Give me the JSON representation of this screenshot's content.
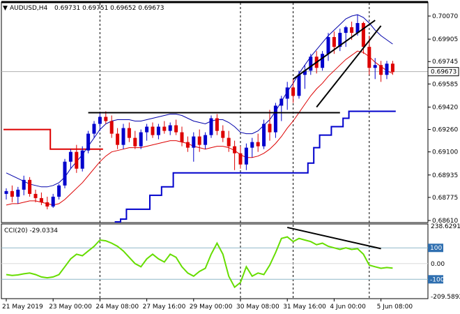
{
  "chart_data": [
    {
      "type": "candlestick",
      "symbol_label": "AUDUSD,H4",
      "ohlc_label": "0.69731 0.69751 0.69652 0.69673",
      "current_price": 0.69673,
      "current_price_label": "0.69673",
      "ylim": [
        0.6861,
        0.70085
      ],
      "y_ticks": [
        0.7007,
        0.69905,
        0.69745,
        0.69585,
        0.6942,
        0.6926,
        0.691,
        0.68935,
        0.68775,
        0.6861
      ],
      "y_tick_labels": [
        "0.70070",
        "0.69905",
        "0.69745",
        "0.69585",
        "0.69420",
        "0.69260",
        "0.69100",
        "0.68935",
        "0.68775",
        "0.68610"
      ],
      "x_tick_labels": [
        "21 May 2019",
        "23 May 00:00",
        "24 May 08:00",
        "27 May 16:00",
        "29 May 00:00",
        "30 May 08:00",
        "31 May 16:00",
        "4 Jun 00:00",
        "5 Jun 08:00"
      ],
      "x_tick_index": [
        0,
        8,
        16,
        24,
        32,
        40,
        48,
        56,
        64
      ],
      "vertical_markers_index": [
        16,
        40,
        49,
        62
      ],
      "candles": [
        [
          0.688,
          0.6884,
          0.6876,
          0.6882
        ],
        [
          0.6882,
          0.6886,
          0.6874,
          0.6878
        ],
        [
          0.6878,
          0.6885,
          0.6873,
          0.6883
        ],
        [
          0.6883,
          0.6893,
          0.6879,
          0.689
        ],
        [
          0.689,
          0.6892,
          0.6878,
          0.688
        ],
        [
          0.688,
          0.6883,
          0.6874,
          0.6877
        ],
        [
          0.6877,
          0.6881,
          0.6872,
          0.6874
        ],
        [
          0.6874,
          0.6878,
          0.6869,
          0.6871
        ],
        [
          0.6871,
          0.688,
          0.687,
          0.6878
        ],
        [
          0.6878,
          0.6887,
          0.6876,
          0.6886
        ],
        [
          0.6886,
          0.6905,
          0.6884,
          0.6903
        ],
        [
          0.6903,
          0.6912,
          0.6898,
          0.691
        ],
        [
          0.691,
          0.6915,
          0.6895,
          0.6898
        ],
        [
          0.6898,
          0.6914,
          0.6896,
          0.6911
        ],
        [
          0.6911,
          0.6925,
          0.6909,
          0.6923
        ],
        [
          0.6923,
          0.6932,
          0.692,
          0.693
        ],
        [
          0.693,
          0.6938,
          0.6925,
          0.6935
        ],
        [
          0.6935,
          0.6939,
          0.693,
          0.6932
        ],
        [
          0.6932,
          0.6936,
          0.692,
          0.6923
        ],
        [
          0.6923,
          0.6927,
          0.6912,
          0.6915
        ],
        [
          0.6915,
          0.693,
          0.6912,
          0.6927
        ],
        [
          0.6927,
          0.6931,
          0.6917,
          0.692
        ],
        [
          0.692,
          0.6925,
          0.6912,
          0.6914
        ],
        [
          0.6914,
          0.6926,
          0.6912,
          0.6924
        ],
        [
          0.6924,
          0.693,
          0.6918,
          0.6928
        ],
        [
          0.6928,
          0.6931,
          0.692,
          0.6922
        ],
        [
          0.6922,
          0.693,
          0.6919,
          0.6928
        ],
        [
          0.6928,
          0.6932,
          0.6923,
          0.6925
        ],
        [
          0.6925,
          0.6931,
          0.6922,
          0.6929
        ],
        [
          0.6929,
          0.6933,
          0.6922,
          0.6924
        ],
        [
          0.6924,
          0.6928,
          0.6914,
          0.6917
        ],
        [
          0.6917,
          0.6921,
          0.691,
          0.6913
        ],
        [
          0.6913,
          0.6924,
          0.6903,
          0.6921
        ],
        [
          0.6921,
          0.6926,
          0.691,
          0.6915
        ],
        [
          0.6915,
          0.6924,
          0.6912,
          0.6922
        ],
        [
          0.6922,
          0.6936,
          0.692,
          0.6934
        ],
        [
          0.6934,
          0.6937,
          0.6922,
          0.6925
        ],
        [
          0.6925,
          0.6929,
          0.6917,
          0.692
        ],
        [
          0.692,
          0.6925,
          0.691,
          0.6914
        ],
        [
          0.6914,
          0.6918,
          0.6897,
          0.6909
        ],
        [
          0.6909,
          0.6914,
          0.6898,
          0.6901
        ],
        [
          0.6901,
          0.6916,
          0.6897,
          0.6913
        ],
        [
          0.6913,
          0.692,
          0.6906,
          0.6917
        ],
        [
          0.6917,
          0.6923,
          0.691,
          0.6914
        ],
        [
          0.6914,
          0.6933,
          0.6912,
          0.693
        ],
        [
          0.693,
          0.694,
          0.6918,
          0.6924
        ],
        [
          0.6924,
          0.6945,
          0.692,
          0.6943
        ],
        [
          0.6943,
          0.695,
          0.6932,
          0.6948
        ],
        [
          0.6948,
          0.696,
          0.694,
          0.6956
        ],
        [
          0.6956,
          0.6962,
          0.6945,
          0.695
        ],
        [
          0.695,
          0.6968,
          0.6948,
          0.6965
        ],
        [
          0.6965,
          0.6972,
          0.6955,
          0.6968
        ],
        [
          0.6968,
          0.698,
          0.6965,
          0.6978
        ],
        [
          0.6978,
          0.6982,
          0.6966,
          0.697
        ],
        [
          0.697,
          0.6982,
          0.6968,
          0.698
        ],
        [
          0.698,
          0.6995,
          0.6975,
          0.6992
        ],
        [
          0.6992,
          0.6996,
          0.698,
          0.6985
        ],
        [
          0.6985,
          0.6998,
          0.6982,
          0.6995
        ],
        [
          0.6995,
          0.7,
          0.6985,
          0.6999
        ],
        [
          0.6999,
          0.7003,
          0.699,
          0.6995
        ],
        [
          0.6995,
          0.7008,
          0.6993,
          0.7002
        ],
        [
          0.7002,
          0.7003,
          0.698,
          0.6985
        ],
        [
          0.6985,
          0.6993,
          0.6965,
          0.697
        ],
        [
          0.697,
          0.6977,
          0.6962,
          0.6972
        ],
        [
          0.6972,
          0.6975,
          0.696,
          0.6965
        ],
        [
          0.6965,
          0.6975,
          0.6962,
          0.6973
        ],
        [
          0.6973,
          0.6975,
          0.6965,
          0.6967
        ]
      ],
      "ma_fast": [
        0.6878,
        0.6879,
        0.6879,
        0.688,
        0.6881,
        0.688,
        0.6879,
        0.6877,
        0.6876,
        0.6878,
        0.6883,
        0.6889,
        0.6894,
        0.6898,
        0.6904,
        0.691,
        0.6916,
        0.692,
        0.6922,
        0.6922,
        0.6922,
        0.6922,
        0.6921,
        0.6921,
        0.6922,
        0.6923,
        0.6924,
        0.6925,
        0.6926,
        0.6926,
        0.6924,
        0.6922,
        0.692,
        0.6919,
        0.6918,
        0.6921,
        0.6922,
        0.6922,
        0.692,
        0.6917,
        0.6913,
        0.6912,
        0.6913,
        0.6914,
        0.6918,
        0.6921,
        0.6926,
        0.6932,
        0.6939,
        0.6944,
        0.6951,
        0.6957,
        0.6963,
        0.6967,
        0.6971,
        0.6977,
        0.698,
        0.6984,
        0.6988,
        0.699,
        0.6993,
        0.6991,
        0.6986,
        0.6982,
        0.6978,
        0.6976,
        0.6974
      ],
      "ma_slow": [
        0.6872,
        0.6873,
        0.6873,
        0.6874,
        0.6875,
        0.6875,
        0.6874,
        0.6873,
        0.6872,
        0.6873,
        0.6876,
        0.688,
        0.6884,
        0.6888,
        0.6893,
        0.6898,
        0.6903,
        0.6907,
        0.691,
        0.6911,
        0.6912,
        0.6913,
        0.6913,
        0.6913,
        0.6914,
        0.6915,
        0.6916,
        0.6917,
        0.6918,
        0.6918,
        0.6917,
        0.6916,
        0.6914,
        0.6913,
        0.6912,
        0.6913,
        0.6914,
        0.6914,
        0.6913,
        0.6911,
        0.6908,
        0.6906,
        0.6906,
        0.6907,
        0.6909,
        0.6912,
        0.6916,
        0.6921,
        0.6927,
        0.6932,
        0.6938,
        0.6944,
        0.695,
        0.6955,
        0.6959,
        0.6964,
        0.6968,
        0.6972,
        0.6976,
        0.6979,
        0.6982,
        0.6981,
        0.6978,
        0.6974,
        0.6971,
        0.6968,
        0.6966
      ],
      "envelope_upper": [
        0.6895,
        0.6893,
        0.6891,
        0.6889,
        0.6887,
        0.6886,
        0.6885,
        0.6885,
        0.6886,
        0.6888,
        0.6892,
        0.6898,
        0.6903,
        0.6908,
        0.6914,
        0.692,
        0.6926,
        0.693,
        0.6932,
        0.6933,
        0.6933,
        0.6933,
        0.6932,
        0.6932,
        0.6933,
        0.6934,
        0.6935,
        0.6936,
        0.6937,
        0.6937,
        0.6936,
        0.6934,
        0.6932,
        0.6931,
        0.693,
        0.6932,
        0.6933,
        0.6933,
        0.6931,
        0.6928,
        0.6924,
        0.6923,
        0.6923,
        0.6925,
        0.6929,
        0.6933,
        0.6939,
        0.6946,
        0.6953,
        0.6959,
        0.6966,
        0.6972,
        0.6978,
        0.6983,
        0.6988,
        0.6993,
        0.6997,
        0.7001,
        0.7005,
        0.7007,
        0.7008,
        0.7006,
        0.7002,
        0.6997,
        0.6993,
        0.699,
        0.6987
      ],
      "step_upper": [
        0.6926,
        0.6926,
        0.6926,
        0.6926,
        0.6926,
        0.6926,
        0.6926,
        0.6926,
        0.6912,
        0.6912,
        0.6912,
        0.6912,
        0.6912,
        0.6912,
        0.6912,
        0.6912,
        0.6912
      ],
      "step_lower": [
        0.686,
        0.6862,
        0.6869,
        0.6869,
        0.6869,
        0.6869,
        0.6879,
        0.6879,
        0.6885,
        0.6885,
        0.6895,
        0.6895,
        0.6895,
        0.6895,
        0.6895,
        0.6895,
        0.6895,
        0.6895,
        0.6895,
        0.6895,
        0.6895,
        0.6895,
        0.6895,
        0.6895,
        0.6895,
        0.6895,
        0.6895,
        0.6895,
        0.6895,
        0.6895,
        0.6895,
        0.6895,
        0.6895,
        0.6902,
        0.6913,
        0.6922,
        0.6922,
        0.6928,
        0.6928,
        0.6934,
        0.6939,
        0.6939,
        0.6939,
        0.6939,
        0.6939,
        0.6939,
        0.6939,
        0.6939
      ],
      "step_lower_start_index": 19,
      "trendlines": [
        {
          "color": "#000000",
          "from": [
            14,
            0.6938
          ],
          "to": [
            57,
            0.6938
          ]
        },
        {
          "color": "#000000",
          "from": [
            49,
            0.6962
          ],
          "to": [
            63,
            0.7004
          ]
        },
        {
          "color": "#000000",
          "from": [
            53,
            0.6942
          ],
          "to": [
            64,
            0.7
          ]
        }
      ]
    },
    {
      "type": "line",
      "indicator_label": "CCI(20) -29.0334",
      "ylim": [
        -209.5892,
        238.6291
      ],
      "y_tick_labels": [
        "238.6291",
        "100",
        "0.00",
        "-100",
        "-209.5892"
      ],
      "levels": [
        100,
        -100
      ],
      "values": [
        -70,
        -75,
        -72,
        -65,
        -60,
        -70,
        -85,
        -90,
        -85,
        -70,
        -20,
        30,
        60,
        50,
        80,
        110,
        150,
        145,
        130,
        110,
        80,
        40,
        0,
        -20,
        30,
        60,
        30,
        10,
        60,
        40,
        -20,
        -60,
        -80,
        -50,
        -30,
        60,
        130,
        60,
        -80,
        -150,
        -120,
        -20,
        -80,
        -60,
        -70,
        -10,
        70,
        160,
        170,
        140,
        160,
        150,
        140,
        120,
        130,
        110,
        100,
        90,
        100,
        90,
        95,
        60,
        -10,
        -20,
        -30,
        -25,
        -29
      ],
      "trendline": {
        "color": "#000000",
        "from": [
          48,
          230
        ],
        "to": [
          64,
          95
        ]
      }
    }
  ],
  "colors": {
    "candle_up": "#0000cc",
    "candle_down": "#dd0000",
    "ma_fast": "#000080",
    "ma_slow": "#dd0000",
    "envelope": "#0000aa",
    "step_upper": "#dd0000",
    "step_lower": "#0000cc",
    "cci_line": "#66dd00",
    "cci_levels": "#8fb7c8",
    "price_grid": "#000000",
    "price_box": "#ffffff"
  }
}
